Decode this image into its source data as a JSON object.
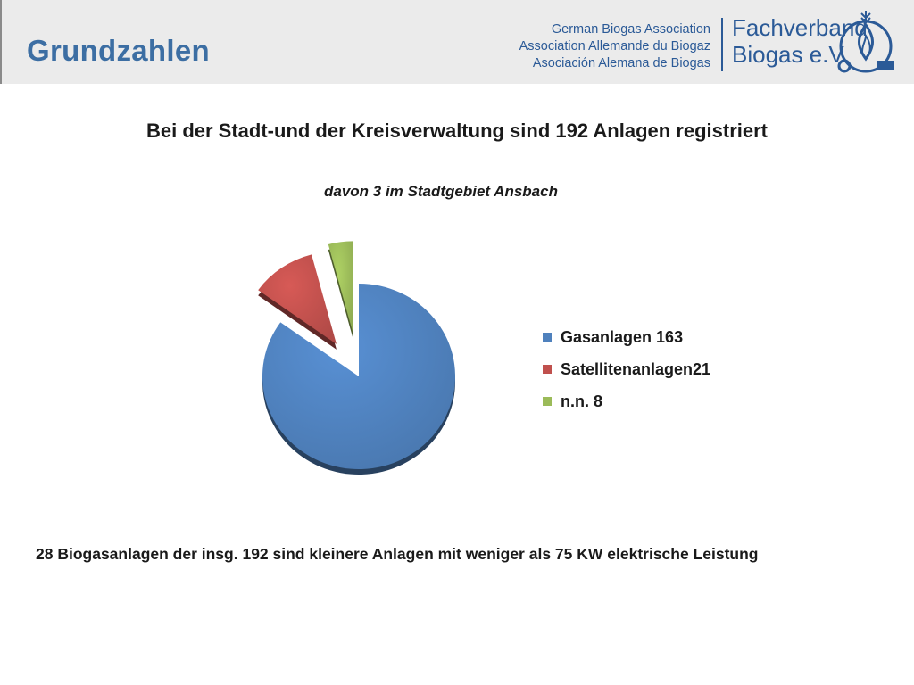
{
  "header": {
    "title": "Grundzahlen",
    "association_lines": [
      "German Biogas Association",
      "Association Allemande du Biogaz",
      "Asociación Alemana de Biogas"
    ],
    "brand_lines": [
      "Fachverband",
      "Biogas e.V."
    ],
    "accent_color": "#3c6ea3"
  },
  "main_title": "Bei der Stadt-und der Kreisverwaltung sind 192 Anlagen registriert",
  "subtitle": "davon 3 im Stadtgebiet Ansbach",
  "footnote": "28 Biogasanlagen der insg. 192 sind kleinere Anlagen mit weniger als 75 KW elektrische Leistung",
  "chart_data": {
    "type": "pie",
    "title": "",
    "categories": [
      "Gasanlagen 163",
      "Satellitenanlagen21",
      "n.n. 8"
    ],
    "values": [
      163,
      21,
      8
    ],
    "colors": [
      "#4f81bd",
      "#c0504d",
      "#9bbb59"
    ],
    "exploded": true,
    "style": "3d",
    "legend_position": "right"
  }
}
